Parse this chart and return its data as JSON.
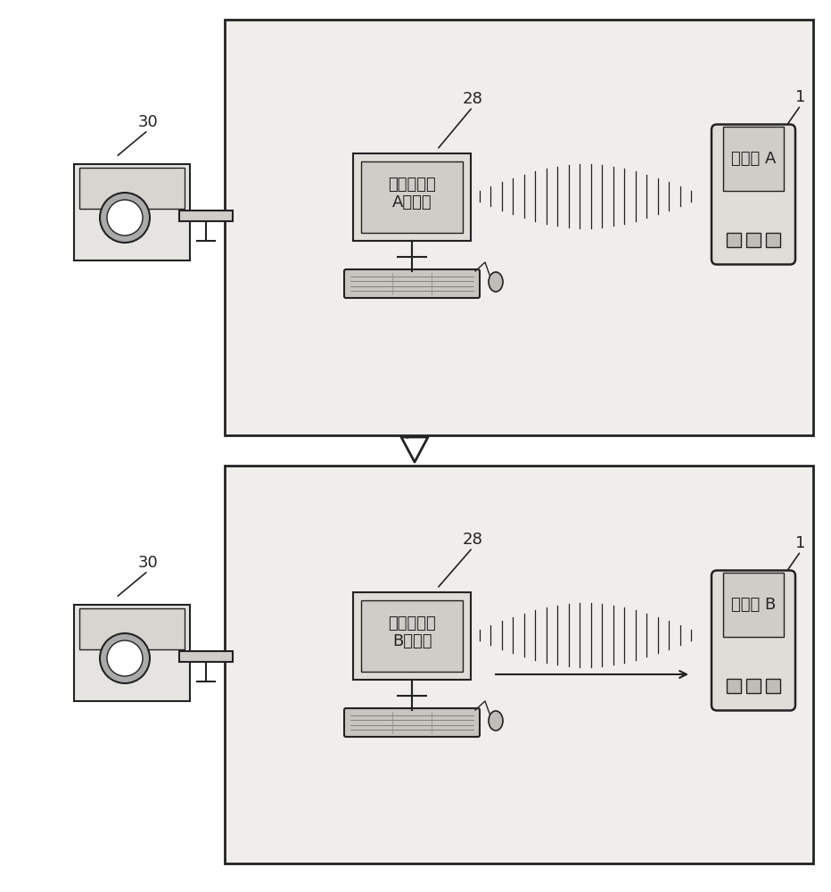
{
  "bg_color": "#ffffff",
  "panel_bg": "#f0eeea",
  "line_color": "#222222",
  "monitor_text_top": "按照上下文\nA的系统",
  "monitor_text_bottom": "按照上下文\nB的系统",
  "device_text_top": "上下文 A",
  "device_text_bottom": "上下文 B",
  "label_30_top": "30",
  "label_30_bottom": "30",
  "label_28_top": "28",
  "label_28_bottom": "28",
  "label_1_top": "1",
  "label_1_bottom": "1",
  "font_size_chinese": 13,
  "font_size_number": 13
}
